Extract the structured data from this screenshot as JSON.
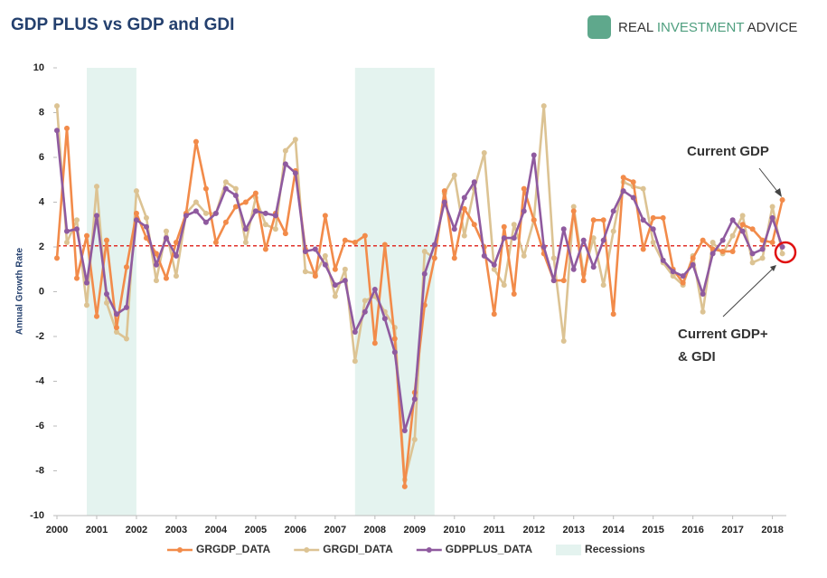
{
  "chart_data": {
    "type": "line",
    "title": "GDP PLUS vs GDP and GDI",
    "brand": [
      "REAL",
      "INVESTMENT",
      "ADVICE"
    ],
    "ylabel": "Annual Growth Rate",
    "x": [
      2000,
      2000.25,
      2000.5,
      2000.75,
      2001,
      2001.25,
      2001.5,
      2001.75,
      2002,
      2002.25,
      2002.5,
      2002.75,
      2003,
      2003.25,
      2003.5,
      2003.75,
      2004,
      2004.25,
      2004.5,
      2004.75,
      2005,
      2005.25,
      2005.5,
      2005.75,
      2006,
      2006.25,
      2006.5,
      2006.75,
      2007,
      2007.25,
      2007.5,
      2007.75,
      2008,
      2008.25,
      2008.5,
      2008.75,
      2009,
      2009.25,
      2009.5,
      2009.75,
      2010,
      2010.25,
      2010.5,
      2010.75,
      2011,
      2011.25,
      2011.5,
      2011.75,
      2012,
      2012.25,
      2012.5,
      2012.75,
      2013,
      2013.25,
      2013.5,
      2013.75,
      2014,
      2014.25,
      2014.5,
      2014.75,
      2015,
      2015.25,
      2015.5,
      2015.75,
      2016,
      2016.25,
      2016.5,
      2016.75,
      2017,
      2017.25,
      2017.5,
      2017.75,
      2018,
      2018.25
    ],
    "series": [
      {
        "name": "GRGDP_DATA",
        "color": "#f28b4a",
        "values": [
          1.5,
          7.3,
          0.6,
          2.5,
          -1.1,
          2.3,
          -1.6,
          1.1,
          3.5,
          2.4,
          1.7,
          0.6,
          2.2,
          3.5,
          6.7,
          4.6,
          2.2,
          3.1,
          3.8,
          4.0,
          4.4,
          1.9,
          3.5,
          2.6,
          5.4,
          1.9,
          0.7,
          3.4,
          1.0,
          2.3,
          2.2,
          2.5,
          -2.3,
          2.1,
          -2.1,
          -8.7,
          -4.5,
          -0.6,
          1.5,
          4.5,
          1.5,
          3.7,
          3.0,
          2.0,
          -1.0,
          2.9,
          -0.1,
          4.6,
          3.2,
          1.7,
          0.5,
          0.5,
          3.6,
          0.5,
          3.2,
          3.2,
          -1.0,
          5.1,
          4.9,
          1.9,
          3.3,
          3.3,
          1.0,
          0.4,
          1.5,
          2.3,
          1.9,
          1.8,
          1.8,
          3.0,
          2.8,
          2.3,
          2.2,
          4.1
        ]
      },
      {
        "name": "GRGDI_DATA",
        "color": "#dcc393",
        "values": [
          8.3,
          2.2,
          3.2,
          -0.6,
          4.7,
          -0.5,
          -1.8,
          -2.1,
          4.5,
          3.3,
          0.5,
          2.7,
          0.7,
          3.5,
          4.0,
          3.5,
          3.5,
          4.9,
          4.6,
          2.2,
          4.2,
          3.0,
          2.8,
          6.3,
          6.8,
          0.9,
          0.8,
          1.6,
          -0.2,
          1.0,
          -3.1,
          -0.4,
          -0.2,
          -0.9,
          -1.6,
          -8.4,
          -6.6,
          1.8,
          1.5,
          4.4,
          5.2,
          2.5,
          4.6,
          6.2,
          1.0,
          0.3,
          3.0,
          1.6,
          3.2,
          8.3,
          1.5,
          -2.2,
          3.8,
          0.8,
          2.4,
          0.3,
          2.7,
          4.9,
          4.7,
          4.6,
          2.2,
          1.3,
          0.7,
          0.3,
          1.6,
          -0.9,
          2.2,
          1.7,
          2.5,
          3.4,
          1.3,
          1.5,
          3.8,
          1.7
        ]
      },
      {
        "name": "GDPPLUS_DATA",
        "color": "#8f5a9f",
        "values": [
          7.2,
          2.7,
          2.8,
          0.4,
          3.4,
          -0.1,
          -1.0,
          -0.7,
          3.2,
          2.9,
          1.2,
          2.4,
          1.6,
          3.4,
          3.6,
          3.1,
          3.5,
          4.6,
          4.3,
          2.8,
          3.6,
          3.5,
          3.4,
          5.7,
          5.3,
          1.8,
          1.9,
          1.2,
          0.3,
          0.5,
          -1.8,
          -0.9,
          0.1,
          -1.2,
          -2.7,
          -6.2,
          -4.8,
          0.8,
          2.1,
          4.0,
          2.8,
          4.2,
          4.9,
          1.6,
          1.2,
          2.4,
          2.4,
          3.6,
          6.1,
          2.0,
          0.5,
          2.8,
          1.0,
          2.3,
          1.1,
          2.3,
          3.6,
          4.5,
          4.2,
          3.2,
          2.8,
          1.4,
          0.9,
          0.7,
          1.2,
          -0.1,
          1.7,
          2.3,
          3.2,
          2.7,
          1.7,
          1.9,
          3.3,
          2.0
        ]
      }
    ],
    "recessions": {
      "name": "Recessions",
      "color": "#e4f3ef",
      "periods": [
        [
          2000.75,
          2002
        ],
        [
          2007.5,
          2009.5
        ]
      ]
    },
    "reference_line": {
      "value": 2.05,
      "color": "#e0302a"
    },
    "annotations": [
      "Current GDP",
      "Current GDP+",
      "& GDI"
    ],
    "xlim": [
      2000,
      2018.35
    ],
    "xticks": [
      2000,
      2001,
      2002,
      2003,
      2004,
      2005,
      2006,
      2007,
      2008,
      2009,
      2010,
      2011,
      2012,
      2013,
      2014,
      2015,
      2016,
      2017,
      2018
    ],
    "ylim": [
      -10,
      10
    ],
    "yticks": [
      -10,
      -8,
      -6,
      -4,
      -2,
      0,
      2,
      4,
      6,
      8,
      10
    ],
    "legend": "bottom"
  }
}
